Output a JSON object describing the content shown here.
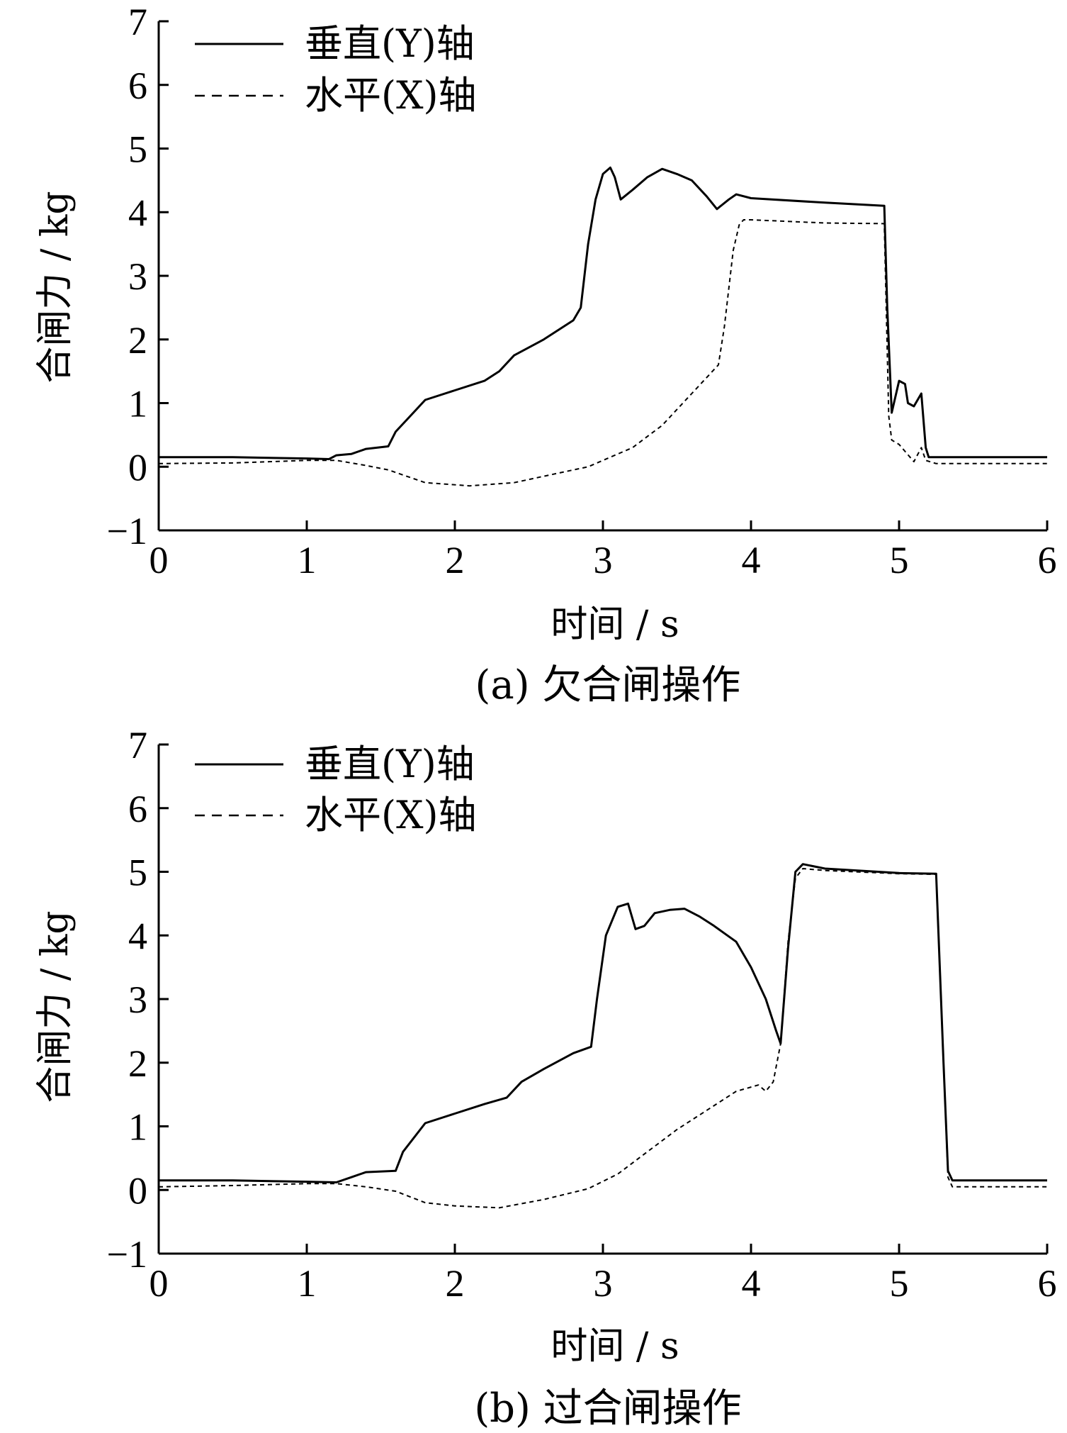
{
  "chart_data": [
    {
      "type": "line",
      "caption": "(a) 欠合闸操作",
      "xlabel": "时间 / s",
      "ylabel": "合闸力 / kg",
      "xlim": [
        0,
        6
      ],
      "ylim": [
        -1,
        7
      ],
      "xticks": [
        "0",
        "1",
        "2",
        "3",
        "4",
        "5",
        "6"
      ],
      "yticks": [
        "−1",
        "0",
        "1",
        "2",
        "3",
        "4",
        "5",
        "6",
        "7"
      ],
      "legend_position": "top-left",
      "series": [
        {
          "name": "垂直(Y)轴",
          "style": "solid",
          "points": [
            [
              0,
              0.15
            ],
            [
              0.5,
              0.15
            ],
            [
              1.0,
              0.13
            ],
            [
              1.15,
              0.12
            ],
            [
              1.2,
              0.18
            ],
            [
              1.3,
              0.2
            ],
            [
              1.4,
              0.28
            ],
            [
              1.55,
              0.32
            ],
            [
              1.6,
              0.55
            ],
            [
              1.7,
              0.8
            ],
            [
              1.8,
              1.05
            ],
            [
              2.0,
              1.2
            ],
            [
              2.2,
              1.35
            ],
            [
              2.3,
              1.5
            ],
            [
              2.4,
              1.75
            ],
            [
              2.6,
              2.0
            ],
            [
              2.8,
              2.3
            ],
            [
              2.85,
              2.5
            ],
            [
              2.9,
              3.5
            ],
            [
              2.95,
              4.2
            ],
            [
              3.0,
              4.6
            ],
            [
              3.05,
              4.7
            ],
            [
              3.08,
              4.55
            ],
            [
              3.12,
              4.2
            ],
            [
              3.2,
              4.35
            ],
            [
              3.3,
              4.55
            ],
            [
              3.4,
              4.68
            ],
            [
              3.5,
              4.6
            ],
            [
              3.6,
              4.5
            ],
            [
              3.7,
              4.25
            ],
            [
              3.77,
              4.05
            ],
            [
              3.85,
              4.2
            ],
            [
              3.9,
              4.28
            ],
            [
              4.0,
              4.22
            ],
            [
              4.5,
              4.15
            ],
            [
              4.9,
              4.1
            ],
            [
              4.92,
              2.5
            ],
            [
              4.95,
              0.85
            ],
            [
              5.0,
              1.35
            ],
            [
              5.04,
              1.3
            ],
            [
              5.06,
              1.0
            ],
            [
              5.1,
              0.95
            ],
            [
              5.15,
              1.15
            ],
            [
              5.18,
              0.3
            ],
            [
              5.2,
              0.15
            ],
            [
              6.0,
              0.15
            ]
          ]
        },
        {
          "name": "水平(X)轴",
          "style": "dashed",
          "points": [
            [
              0,
              0.05
            ],
            [
              0.5,
              0.06
            ],
            [
              1.0,
              0.1
            ],
            [
              1.2,
              0.1
            ],
            [
              1.4,
              0.02
            ],
            [
              1.55,
              -0.05
            ],
            [
              1.8,
              -0.25
            ],
            [
              2.1,
              -0.3
            ],
            [
              2.4,
              -0.25
            ],
            [
              2.7,
              -0.1
            ],
            [
              2.9,
              0.0
            ],
            [
              3.0,
              0.1
            ],
            [
              3.2,
              0.3
            ],
            [
              3.4,
              0.65
            ],
            [
              3.6,
              1.15
            ],
            [
              3.78,
              1.6
            ],
            [
              3.82,
              2.2
            ],
            [
              3.88,
              3.4
            ],
            [
              3.92,
              3.8
            ],
            [
              3.95,
              3.88
            ],
            [
              4.0,
              3.88
            ],
            [
              4.5,
              3.83
            ],
            [
              4.9,
              3.82
            ],
            [
              4.93,
              0.8
            ],
            [
              4.95,
              0.42
            ],
            [
              5.0,
              0.35
            ],
            [
              5.1,
              0.08
            ],
            [
              5.15,
              0.3
            ],
            [
              5.18,
              0.1
            ],
            [
              5.25,
              0.05
            ],
            [
              6.0,
              0.05
            ]
          ]
        }
      ]
    },
    {
      "type": "line",
      "caption": "(b) 过合闸操作",
      "xlabel": "时间 / s",
      "ylabel": "合闸力 / kg",
      "xlim": [
        0,
        6
      ],
      "ylim": [
        -1,
        7
      ],
      "xticks": [
        "0",
        "1",
        "2",
        "3",
        "4",
        "5",
        "6"
      ],
      "yticks": [
        "−1",
        "0",
        "1",
        "2",
        "3",
        "4",
        "5",
        "6",
        "7"
      ],
      "legend_position": "top-left",
      "series": [
        {
          "name": "垂直(Y)轴",
          "style": "solid",
          "points": [
            [
              0,
              0.15
            ],
            [
              0.5,
              0.15
            ],
            [
              1.0,
              0.13
            ],
            [
              1.2,
              0.12
            ],
            [
              1.3,
              0.2
            ],
            [
              1.4,
              0.28
            ],
            [
              1.6,
              0.3
            ],
            [
              1.65,
              0.6
            ],
            [
              1.8,
              1.05
            ],
            [
              2.0,
              1.2
            ],
            [
              2.2,
              1.35
            ],
            [
              2.35,
              1.45
            ],
            [
              2.45,
              1.7
            ],
            [
              2.6,
              1.9
            ],
            [
              2.8,
              2.15
            ],
            [
              2.92,
              2.25
            ],
            [
              2.96,
              3.0
            ],
            [
              3.02,
              4.0
            ],
            [
              3.1,
              4.45
            ],
            [
              3.17,
              4.5
            ],
            [
              3.22,
              4.1
            ],
            [
              3.28,
              4.15
            ],
            [
              3.35,
              4.35
            ],
            [
              3.45,
              4.4
            ],
            [
              3.55,
              4.42
            ],
            [
              3.65,
              4.3
            ],
            [
              3.75,
              4.15
            ],
            [
              3.9,
              3.9
            ],
            [
              4.0,
              3.5
            ],
            [
              4.1,
              3.0
            ],
            [
              4.17,
              2.5
            ],
            [
              4.2,
              2.3
            ],
            [
              4.25,
              3.8
            ],
            [
              4.3,
              5.0
            ],
            [
              4.35,
              5.12
            ],
            [
              4.5,
              5.05
            ],
            [
              5.0,
              4.98
            ],
            [
              5.25,
              4.97
            ],
            [
              5.3,
              2.0
            ],
            [
              5.33,
              0.3
            ],
            [
              5.36,
              0.15
            ],
            [
              6.0,
              0.15
            ]
          ]
        },
        {
          "name": "水平(X)轴",
          "style": "dashed",
          "points": [
            [
              0,
              0.05
            ],
            [
              0.5,
              0.07
            ],
            [
              1.0,
              0.1
            ],
            [
              1.2,
              0.1
            ],
            [
              1.4,
              0.05
            ],
            [
              1.6,
              -0.02
            ],
            [
              1.8,
              -0.2
            ],
            [
              2.0,
              -0.25
            ],
            [
              2.3,
              -0.28
            ],
            [
              2.6,
              -0.15
            ],
            [
              2.9,
              0.02
            ],
            [
              3.1,
              0.25
            ],
            [
              3.3,
              0.6
            ],
            [
              3.5,
              0.95
            ],
            [
              3.7,
              1.25
            ],
            [
              3.9,
              1.55
            ],
            [
              4.05,
              1.65
            ],
            [
              4.1,
              1.55
            ],
            [
              4.15,
              1.7
            ],
            [
              4.2,
              2.3
            ],
            [
              4.25,
              3.9
            ],
            [
              4.3,
              4.9
            ],
            [
              4.35,
              5.05
            ],
            [
              4.5,
              5.02
            ],
            [
              5.0,
              4.97
            ],
            [
              5.25,
              4.96
            ],
            [
              5.3,
              2.0
            ],
            [
              5.33,
              0.2
            ],
            [
              5.36,
              0.05
            ],
            [
              6.0,
              0.05
            ]
          ]
        }
      ]
    }
  ]
}
